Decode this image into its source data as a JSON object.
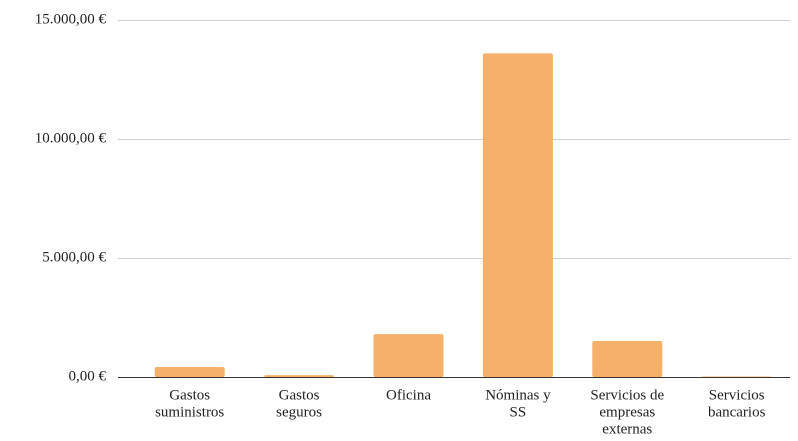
{
  "chart_data": {
    "type": "bar",
    "categories": [
      [
        "Gastos",
        "suministros"
      ],
      [
        "Gastos",
        "seguros"
      ],
      [
        "Oficina"
      ],
      [
        "Nóminas y",
        "SS"
      ],
      [
        "Servicios de",
        "empresas",
        "externas"
      ],
      [
        "Servicios",
        "bancarios"
      ]
    ],
    "values": [
      420,
      80,
      1800,
      13600,
      1510,
      20
    ],
    "color": "#f5b169",
    "ylim": [
      0,
      15000
    ],
    "yticks": [
      {
        "value": 0,
        "label": "0,00 €"
      },
      {
        "value": 5000,
        "label": "5.000,00 €"
      },
      {
        "value": 10000,
        "label": "10.000,00 €"
      },
      {
        "value": 15000,
        "label": "15.000,00 €"
      }
    ],
    "grid": true
  }
}
